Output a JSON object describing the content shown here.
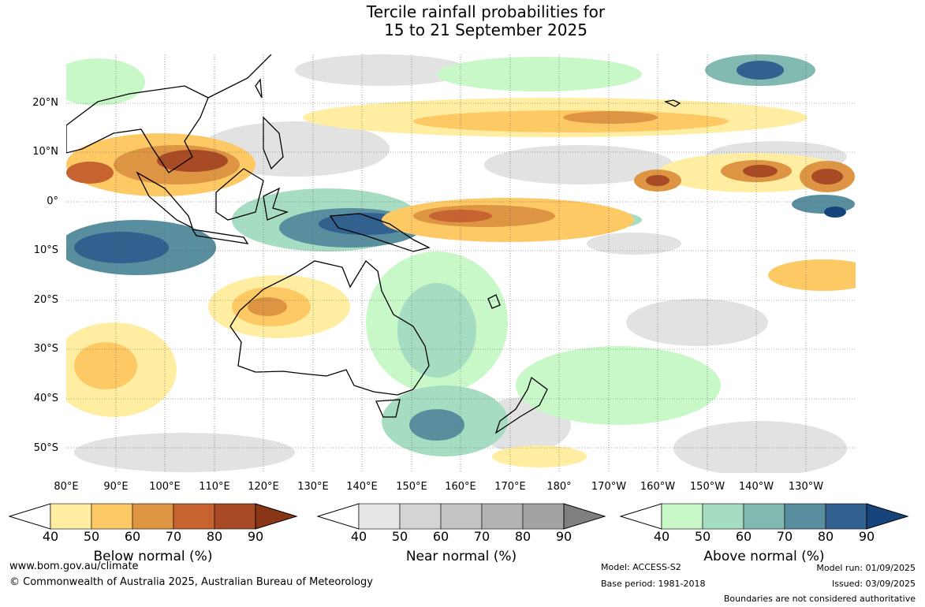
{
  "title": {
    "line1": "Tercile rainfall probabilities for",
    "line2": "15 to 21 September 2025"
  },
  "map": {
    "latitude_labels": [
      "20°N",
      "10°N",
      "0°",
      "10°S",
      "20°S",
      "30°S",
      "40°S",
      "50°S"
    ],
    "longitude_labels": [
      "80°E",
      "90°E",
      "100°E",
      "110°E",
      "120°E",
      "130°E",
      "140°E",
      "150°E",
      "160°E",
      "170°E",
      "180°",
      "170°W",
      "160°W",
      "150°W",
      "140°W",
      "130°W"
    ],
    "grid": true,
    "colors": {
      "below_normal": [
        "#ffeea1",
        "#fdc965",
        "#de9543",
        "#c76331",
        "#a84a25",
        "#8a3516"
      ],
      "near_normal": [
        "#e6e6e6",
        "#d4d4d4",
        "#c4c4c4",
        "#b3b3b3",
        "#a3a3a3",
        "#7f7f7f"
      ],
      "above_normal": [
        "#c8f8c8",
        "#a6dcc2",
        "#82b9b0",
        "#598e9e",
        "#326190",
        "#17447b"
      ]
    }
  },
  "colorbars": [
    {
      "title": "Below normal (%)",
      "ticks": [
        "40",
        "50",
        "60",
        "70",
        "80",
        "90"
      ]
    },
    {
      "title": "Near normal (%)",
      "ticks": [
        "40",
        "50",
        "60",
        "70",
        "80",
        "90"
      ]
    },
    {
      "title": "Above normal (%)",
      "ticks": [
        "40",
        "50",
        "60",
        "70",
        "80",
        "90"
      ]
    }
  ],
  "footer": {
    "website": "www.bom.gov.au/climate",
    "copyright": "© Commonwealth of Australia 2025, Australian Bureau of Meteorology",
    "model": "Model: ACCESS-S2",
    "base_period": "Base period: 1981-2018",
    "model_run": "Model run: 01/09/2025",
    "issued": "Issued: 03/09/2025",
    "disclaimer": "Boundaries are not considered authoritative"
  }
}
